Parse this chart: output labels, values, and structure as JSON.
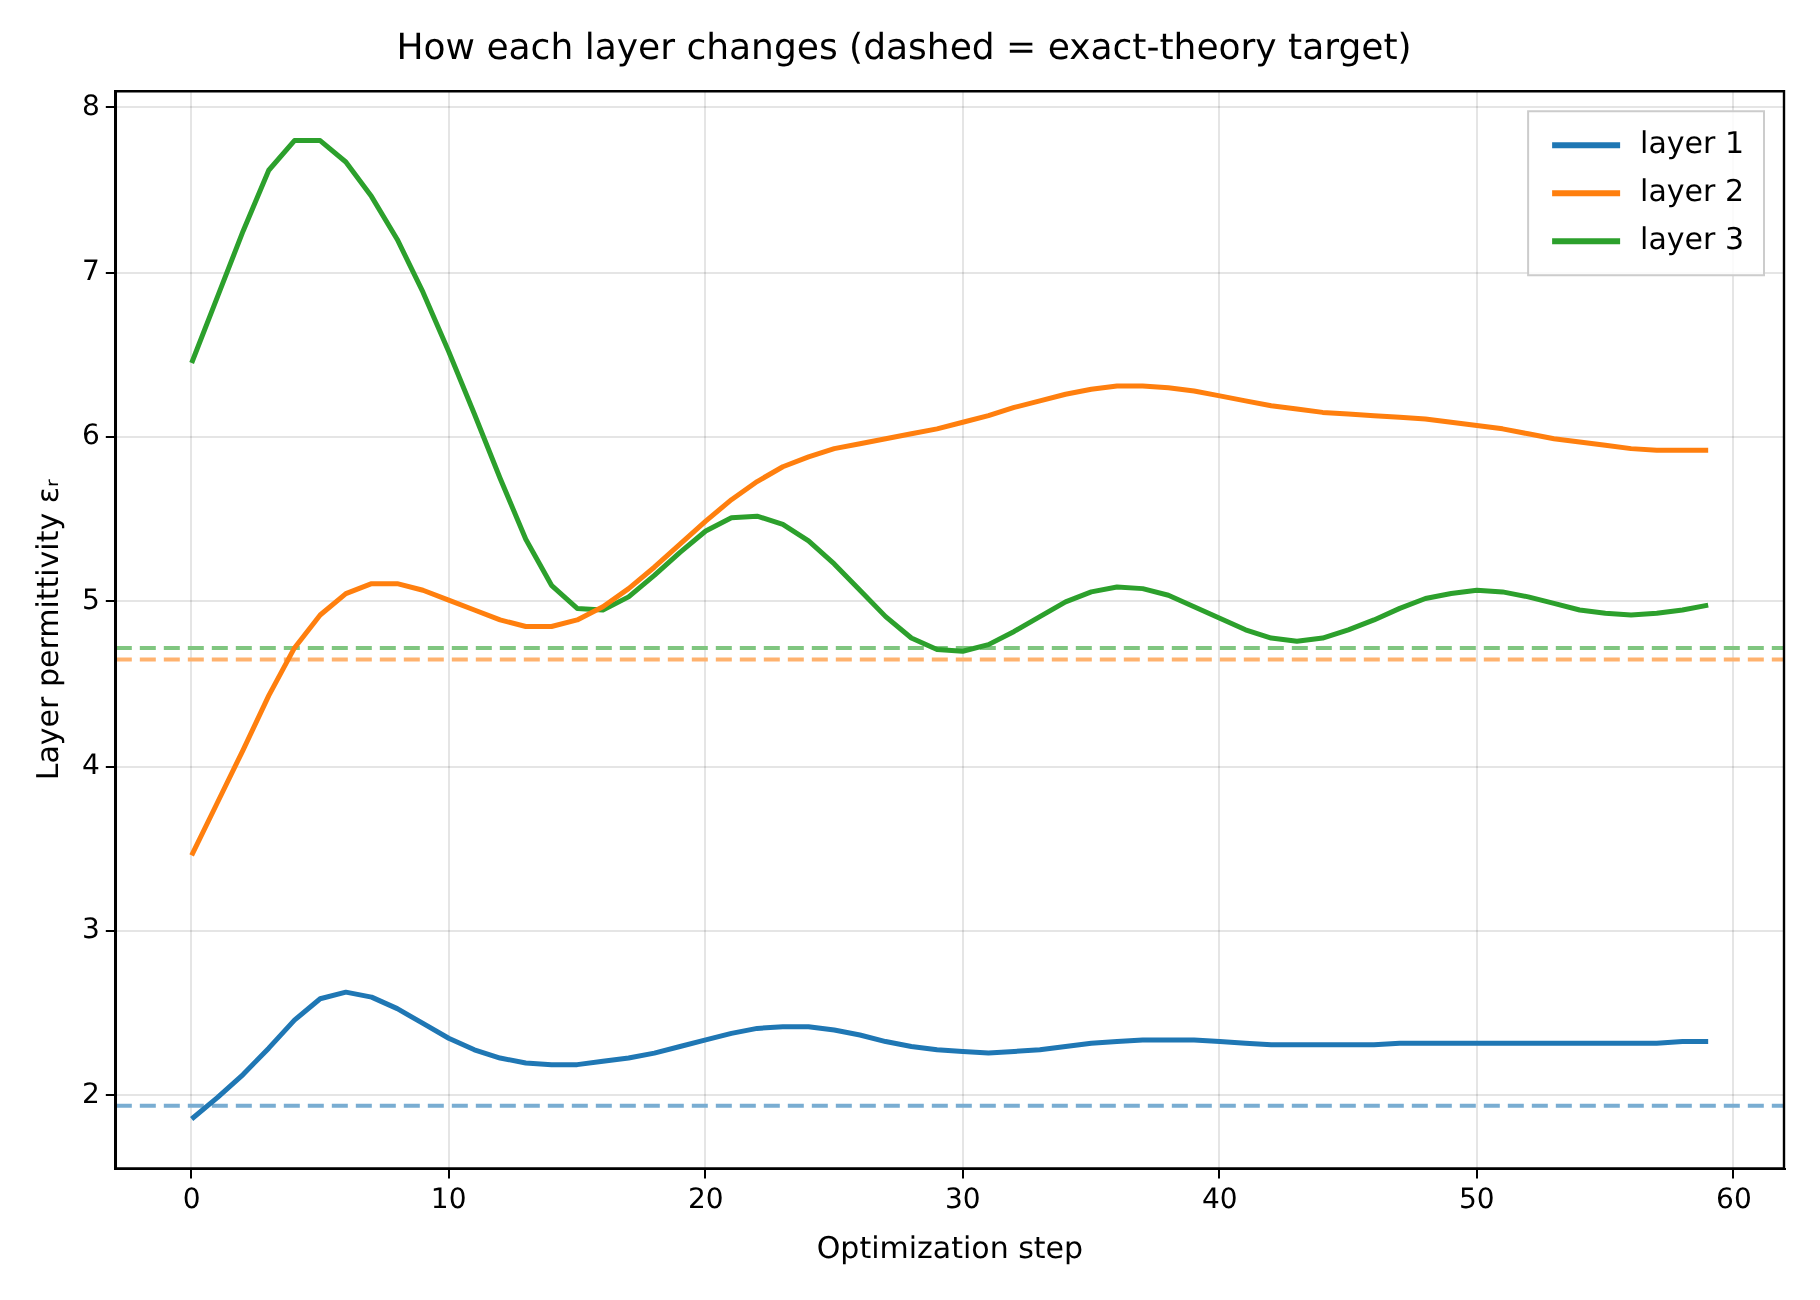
{
  "chart_data": {
    "type": "line",
    "title": "How each layer changes (dashed = exact-theory target)",
    "xlabel": "Optimization step",
    "ylabel": "Layer permittivity εᵣ",
    "x": [
      0,
      1,
      2,
      3,
      4,
      5,
      6,
      7,
      8,
      9,
      10,
      11,
      12,
      13,
      14,
      15,
      16,
      17,
      18,
      19,
      20,
      21,
      22,
      23,
      24,
      25,
      26,
      27,
      28,
      29,
      30,
      31,
      32,
      33,
      34,
      35,
      36,
      37,
      38,
      39,
      40,
      41,
      42,
      43,
      44,
      45,
      46,
      47,
      48,
      49,
      50,
      51,
      52,
      53,
      54,
      55,
      56,
      57,
      58,
      59
    ],
    "series": [
      {
        "name": "layer 1",
        "color": "#1f77b4",
        "values": [
          1.86,
          1.99,
          2.13,
          2.29,
          2.46,
          2.59,
          2.63,
          2.6,
          2.53,
          2.44,
          2.35,
          2.28,
          2.23,
          2.2,
          2.19,
          2.19,
          2.21,
          2.23,
          2.26,
          2.3,
          2.34,
          2.38,
          2.41,
          2.42,
          2.42,
          2.4,
          2.37,
          2.33,
          2.3,
          2.28,
          2.27,
          2.26,
          2.27,
          2.28,
          2.3,
          2.32,
          2.33,
          2.34,
          2.34,
          2.34,
          2.33,
          2.32,
          2.31,
          2.31,
          2.31,
          2.31,
          2.31,
          2.32,
          2.32,
          2.32,
          2.32,
          2.32,
          2.32,
          2.32,
          2.32,
          2.32,
          2.32,
          2.32,
          2.33,
          2.33
        ]
      },
      {
        "name": "layer 2",
        "color": "#ff7f0e",
        "values": [
          3.46,
          3.78,
          4.1,
          4.43,
          4.72,
          4.92,
          5.05,
          5.11,
          5.11,
          5.07,
          5.01,
          4.95,
          4.89,
          4.85,
          4.85,
          4.89,
          4.97,
          5.08,
          5.21,
          5.35,
          5.49,
          5.62,
          5.73,
          5.82,
          5.88,
          5.93,
          5.96,
          5.99,
          6.02,
          6.05,
          6.09,
          6.13,
          6.18,
          6.22,
          6.26,
          6.29,
          6.31,
          6.31,
          6.3,
          6.28,
          6.25,
          6.22,
          6.19,
          6.17,
          6.15,
          6.14,
          6.13,
          6.12,
          6.11,
          6.09,
          6.07,
          6.05,
          6.02,
          5.99,
          5.97,
          5.95,
          5.93,
          5.92,
          5.92,
          5.92
        ]
      },
      {
        "name": "layer 3",
        "color": "#2ca02c",
        "values": [
          6.45,
          6.85,
          7.25,
          7.62,
          7.8,
          7.8,
          7.67,
          7.46,
          7.2,
          6.88,
          6.52,
          6.14,
          5.75,
          5.38,
          5.1,
          4.96,
          4.95,
          5.03,
          5.16,
          5.3,
          5.43,
          5.51,
          5.52,
          5.47,
          5.37,
          5.23,
          5.07,
          4.91,
          4.78,
          4.71,
          4.7,
          4.74,
          4.82,
          4.91,
          5.0,
          5.06,
          5.09,
          5.08,
          5.04,
          4.97,
          4.9,
          4.83,
          4.78,
          4.76,
          4.78,
          4.83,
          4.89,
          4.96,
          5.02,
          5.05,
          5.07,
          5.06,
          5.03,
          4.99,
          4.95,
          4.93,
          4.92,
          4.93,
          4.95,
          4.98
        ]
      }
    ],
    "ref_lines": [
      {
        "axis": "y",
        "value": 1.94,
        "color": "#79add2",
        "line_style": "dashed"
      },
      {
        "axis": "y",
        "value": 4.65,
        "color": "#ffb26e",
        "line_style": "dashed"
      },
      {
        "axis": "y",
        "value": 4.72,
        "color": "#80c680",
        "line_style": "dashed"
      }
    ],
    "xlim": [
      -2.95,
      61.95
    ],
    "xticks": [
      0,
      10,
      20,
      30,
      40,
      50,
      60
    ],
    "ylim": [
      1.56,
      8.1
    ],
    "yticks": [
      2,
      3,
      4,
      5,
      6,
      7,
      8
    ],
    "grid": true,
    "legend": "top right",
    "marker": "none",
    "line_style": "solid"
  }
}
